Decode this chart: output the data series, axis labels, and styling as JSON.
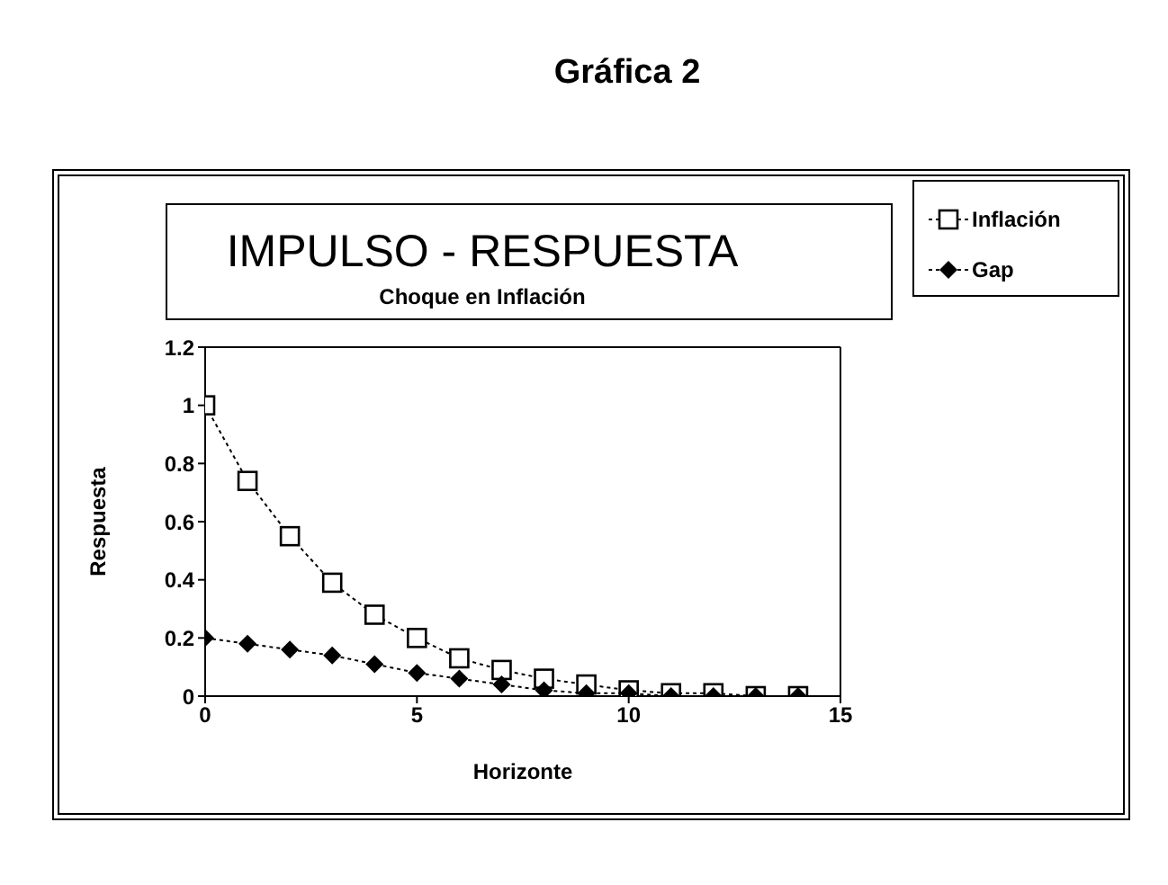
{
  "chart_data": {
    "type": "line",
    "title": "IMPULSO - RESPUESTA",
    "subtitle": "Choque en Inflación",
    "xlabel": "Horizonte",
    "ylabel": "Respuesta",
    "annotations": [
      "Gráfica 2"
    ],
    "x": [
      0,
      1,
      2,
      3,
      4,
      5,
      6,
      7,
      8,
      9,
      10,
      11,
      12,
      13,
      14
    ],
    "xlim": [
      0,
      15
    ],
    "xticks": [
      0,
      5,
      10,
      15
    ],
    "ylim": [
      0,
      1.2
    ],
    "yticks": [
      0,
      0.2,
      0.4,
      0.6,
      0.8,
      1,
      1.2
    ],
    "legend": "top right",
    "line_style": "dotted",
    "series": [
      {
        "name": "Inflación",
        "color": "#000000",
        "marker": "square",
        "values": [
          1,
          0.74,
          0.55,
          0.39,
          0.28,
          0.2,
          0.13,
          0.09,
          0.06,
          0.04,
          0.02,
          0.01,
          0.01,
          0,
          0
        ]
      },
      {
        "name": "Gap",
        "color": "#000000",
        "marker": "diamond",
        "values": [
          0.2,
          0.18,
          0.16,
          0.14,
          0.11,
          0.08,
          0.06,
          0.04,
          0.02,
          0.01,
          0.01,
          0,
          0,
          0,
          0
        ]
      }
    ]
  }
}
